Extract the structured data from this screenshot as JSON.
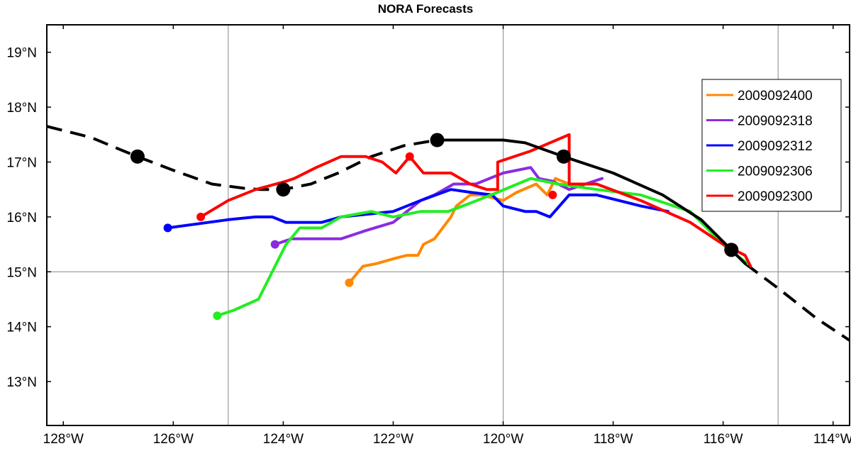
{
  "chart_data": {
    "type": "line",
    "title": "NORA Forecasts",
    "xlabel": "",
    "ylabel": "",
    "xlim": [
      -128.3,
      -113.7
    ],
    "ylim": [
      12.2,
      19.5
    ],
    "grid": {
      "x": [
        -125,
        -120,
        -115
      ],
      "y": [
        15
      ]
    },
    "x_ticks": [
      -128,
      -126,
      -124,
      -122,
      -120,
      -118,
      -116,
      -114
    ],
    "x_tick_labels": [
      "128°W",
      "126°W",
      "124°W",
      "122°W",
      "120°W",
      "118°W",
      "116°W",
      "114°W"
    ],
    "y_ticks": [
      13,
      14,
      15,
      16,
      17,
      18,
      19
    ],
    "y_tick_labels": [
      "13°N",
      "14°N",
      "15°N",
      "16°N",
      "17°N",
      "18°N",
      "19°N"
    ],
    "legend_position": "right",
    "observed_track": {
      "color": "#000000",
      "dashed_before": [
        [
          -128.3,
          17.65
        ],
        [
          -127.5,
          17.45
        ],
        [
          -126.9,
          17.2
        ],
        [
          -126.65,
          17.1
        ],
        [
          -126.0,
          16.85
        ],
        [
          -125.3,
          16.6
        ],
        [
          -124.7,
          16.52
        ],
        [
          -124.4,
          16.5
        ],
        [
          -124.0,
          16.5
        ],
        [
          -123.5,
          16.6
        ],
        [
          -123.0,
          16.8
        ],
        [
          -122.4,
          17.1
        ],
        [
          -121.8,
          17.3
        ],
        [
          -121.2,
          17.4
        ]
      ],
      "solid": [
        [
          -121.2,
          17.4
        ],
        [
          -120.9,
          17.4
        ],
        [
          -120.0,
          17.4
        ],
        [
          -119.6,
          17.35
        ],
        [
          -118.9,
          17.1
        ],
        [
          -118.0,
          16.8
        ],
        [
          -117.1,
          16.4
        ],
        [
          -116.4,
          15.95
        ],
        [
          -115.85,
          15.4
        ],
        [
          -115.6,
          15.15
        ]
      ],
      "dashed_after": [
        [
          -115.6,
          15.15
        ],
        [
          -115.0,
          14.7
        ],
        [
          -114.3,
          14.15
        ],
        [
          -113.7,
          13.75
        ]
      ],
      "markers": [
        [
          -126.65,
          17.1
        ],
        [
          -124.0,
          16.5
        ],
        [
          -121.2,
          17.4
        ],
        [
          -118.9,
          17.1
        ],
        [
          -115.85,
          15.4
        ]
      ]
    },
    "series": [
      {
        "name": "2009092400",
        "color": "#ff8800",
        "start_marker": true,
        "points": [
          [
            -122.8,
            14.8
          ],
          [
            -122.55,
            15.1
          ],
          [
            -122.3,
            15.15
          ],
          [
            -121.95,
            15.25
          ],
          [
            -121.75,
            15.3
          ],
          [
            -121.55,
            15.3
          ],
          [
            -121.45,
            15.5
          ],
          [
            -121.25,
            15.6
          ],
          [
            -120.95,
            16.0
          ],
          [
            -120.85,
            16.2
          ],
          [
            -120.6,
            16.4
          ],
          [
            -120.4,
            16.4
          ],
          [
            -120.0,
            16.3
          ],
          [
            -119.75,
            16.45
          ],
          [
            -119.4,
            16.6
          ],
          [
            -119.2,
            16.4
          ],
          [
            -119.05,
            16.7
          ],
          [
            -118.8,
            16.6
          ]
        ]
      },
      {
        "name": "2009092318",
        "color": "#8a2be2",
        "start_marker": true,
        "points": [
          [
            -124.15,
            15.5
          ],
          [
            -123.85,
            15.6
          ],
          [
            -122.95,
            15.6
          ],
          [
            -122.5,
            15.75
          ],
          [
            -122.0,
            15.9
          ],
          [
            -121.5,
            16.3
          ],
          [
            -121.25,
            16.4
          ],
          [
            -120.9,
            16.6
          ],
          [
            -120.5,
            16.6
          ],
          [
            -120.0,
            16.8
          ],
          [
            -119.5,
            16.9
          ],
          [
            -119.35,
            16.7
          ],
          [
            -119.1,
            16.65
          ],
          [
            -118.8,
            16.5
          ],
          [
            -118.2,
            16.7
          ]
        ]
      },
      {
        "name": "2009092312",
        "color": "#0000ff",
        "start_marker": true,
        "points": [
          [
            -126.1,
            15.8
          ],
          [
            -125.0,
            15.95
          ],
          [
            -124.5,
            16.0
          ],
          [
            -124.2,
            16.0
          ],
          [
            -123.95,
            15.9
          ],
          [
            -123.3,
            15.9
          ],
          [
            -122.95,
            16.0
          ],
          [
            -122.0,
            16.1
          ],
          [
            -121.5,
            16.3
          ],
          [
            -120.95,
            16.5
          ],
          [
            -120.6,
            16.45
          ],
          [
            -120.2,
            16.4
          ],
          [
            -120.0,
            16.2
          ],
          [
            -119.6,
            16.1
          ],
          [
            -119.4,
            16.1
          ],
          [
            -119.15,
            16.0
          ],
          [
            -118.8,
            16.4
          ],
          [
            -118.3,
            16.4
          ],
          [
            -117.9,
            16.3
          ],
          [
            -117.5,
            16.2
          ],
          [
            -117.0,
            16.1
          ]
        ]
      },
      {
        "name": "2009092306",
        "color": "#22ee22",
        "start_marker": true,
        "points": [
          [
            -125.2,
            14.2
          ],
          [
            -124.9,
            14.3
          ],
          [
            -124.45,
            14.5
          ],
          [
            -124.2,
            15.0
          ],
          [
            -123.95,
            15.5
          ],
          [
            -123.7,
            15.8
          ],
          [
            -123.3,
            15.8
          ],
          [
            -122.95,
            16.0
          ],
          [
            -122.4,
            16.1
          ],
          [
            -122.0,
            16.0
          ],
          [
            -121.5,
            16.1
          ],
          [
            -121.0,
            16.1
          ],
          [
            -120.6,
            16.25
          ],
          [
            -120.1,
            16.45
          ],
          [
            -119.5,
            16.7
          ],
          [
            -119.0,
            16.6
          ],
          [
            -118.3,
            16.5
          ],
          [
            -117.5,
            16.4
          ],
          [
            -116.6,
            16.1
          ],
          [
            -116.2,
            15.7
          ],
          [
            -115.9,
            15.4
          ],
          [
            -115.55,
            15.15
          ]
        ]
      },
      {
        "name": "2009092300",
        "color": "#ff0000",
        "start_marker": true,
        "points": [
          [
            -125.5,
            16.0
          ],
          [
            -125.0,
            16.3
          ],
          [
            -124.5,
            16.5
          ],
          [
            -123.95,
            16.65
          ],
          [
            -123.8,
            16.7
          ],
          [
            -123.4,
            16.9
          ],
          [
            -122.95,
            17.1
          ],
          [
            -122.5,
            17.1
          ],
          [
            -122.2,
            17.0
          ],
          [
            -121.95,
            16.8
          ],
          [
            -121.7,
            17.1
          ],
          [
            -121.45,
            16.8
          ],
          [
            -120.95,
            16.8
          ],
          [
            -120.6,
            16.6
          ],
          [
            -120.3,
            16.5
          ],
          [
            -120.1,
            16.5
          ],
          [
            -120.1,
            17.0
          ],
          [
            -119.5,
            17.2
          ],
          [
            -118.8,
            17.5
          ],
          [
            -118.8,
            16.6
          ],
          [
            -118.3,
            16.6
          ],
          [
            -117.5,
            16.3
          ],
          [
            -116.6,
            15.9
          ],
          [
            -116.0,
            15.5
          ],
          [
            -115.6,
            15.3
          ],
          [
            -115.5,
            15.1
          ]
        ],
        "extra_markers": [
          [
            -121.7,
            17.1
          ],
          [
            -119.1,
            16.4
          ]
        ]
      }
    ]
  }
}
